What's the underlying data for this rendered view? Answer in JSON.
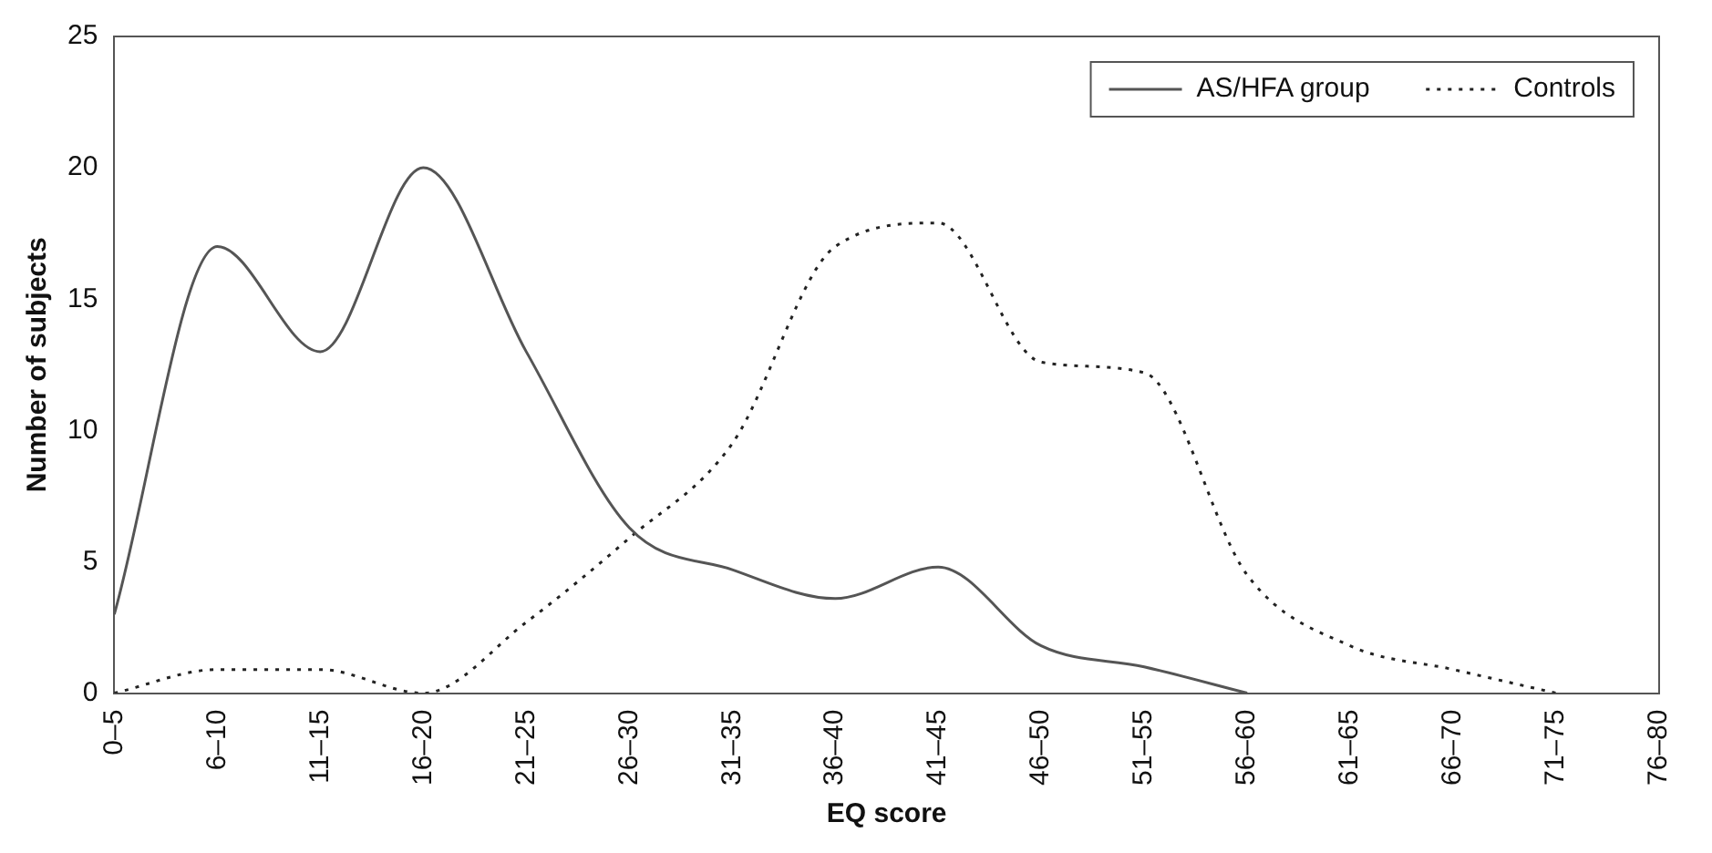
{
  "chart_data": {
    "type": "line",
    "xlabel": "EQ score",
    "ylabel": "Number of subjects",
    "categories": [
      "0–5",
      "6–10",
      "11–15",
      "16–20",
      "21–25",
      "26–30",
      "31–35",
      "36–40",
      "41–45",
      "46–50",
      "51–55",
      "56–60",
      "61–65",
      "66–70",
      "71–75",
      "76–80"
    ],
    "series": [
      {
        "name": "AS/HFA group",
        "color": "#555555",
        "line_style": "solid",
        "values": [
          3,
          17,
          13,
          20,
          13,
          6.3,
          4.7,
          3.6,
          4.8,
          1.8,
          1,
          0,
          null,
          null,
          null,
          null
        ]
      },
      {
        "name": "Controls",
        "color": "#222222",
        "line_style": "dotted",
        "values": [
          0,
          0.9,
          0.9,
          0,
          2.7,
          5.9,
          9.5,
          17,
          17.9,
          12.6,
          12.2,
          4.5,
          1.8,
          0.9,
          0,
          null
        ]
      }
    ],
    "ylim": [
      0,
      25
    ],
    "yticks": [
      0,
      5,
      10,
      15,
      20,
      25
    ],
    "grid": false,
    "legend": "top right",
    "marker": "none"
  }
}
